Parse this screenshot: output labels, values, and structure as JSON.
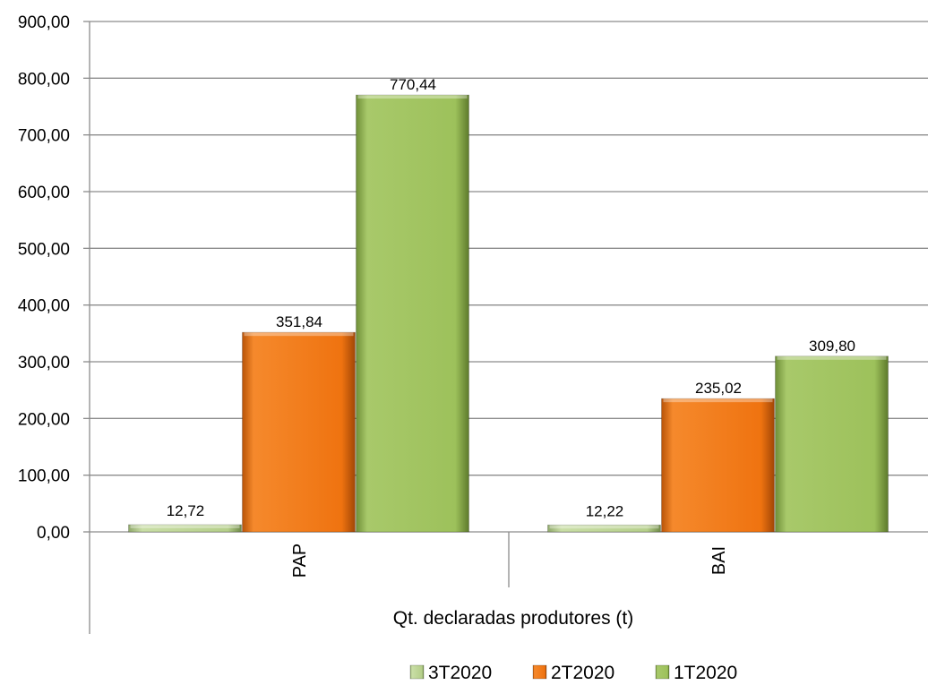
{
  "chart_data": {
    "type": "bar",
    "categories": [
      "PAP",
      "BAI"
    ],
    "group_label": "Qt. declaradas produtores (t)",
    "ylim": [
      0,
      900
    ],
    "yticks": [
      "0,00",
      "100,00",
      "200,00",
      "300,00",
      "400,00",
      "500,00",
      "600,00",
      "700,00",
      "800,00",
      "900,00"
    ],
    "series": [
      {
        "name": "3T2020",
        "color": "#b5cf8a",
        "values": [
          12.72,
          12.22
        ],
        "labels": [
          "12,72",
          "12,22"
        ]
      },
      {
        "name": "2T2020",
        "color": "#f07614",
        "values": [
          351.84,
          235.02
        ],
        "labels": [
          "351,84",
          "235,02"
        ]
      },
      {
        "name": "1T2020",
        "color": "#9dc15b",
        "values": [
          770.44,
          309.8
        ],
        "labels": [
          "770,44",
          "309,80"
        ]
      }
    ],
    "grid": true,
    "legend": "bottom"
  }
}
